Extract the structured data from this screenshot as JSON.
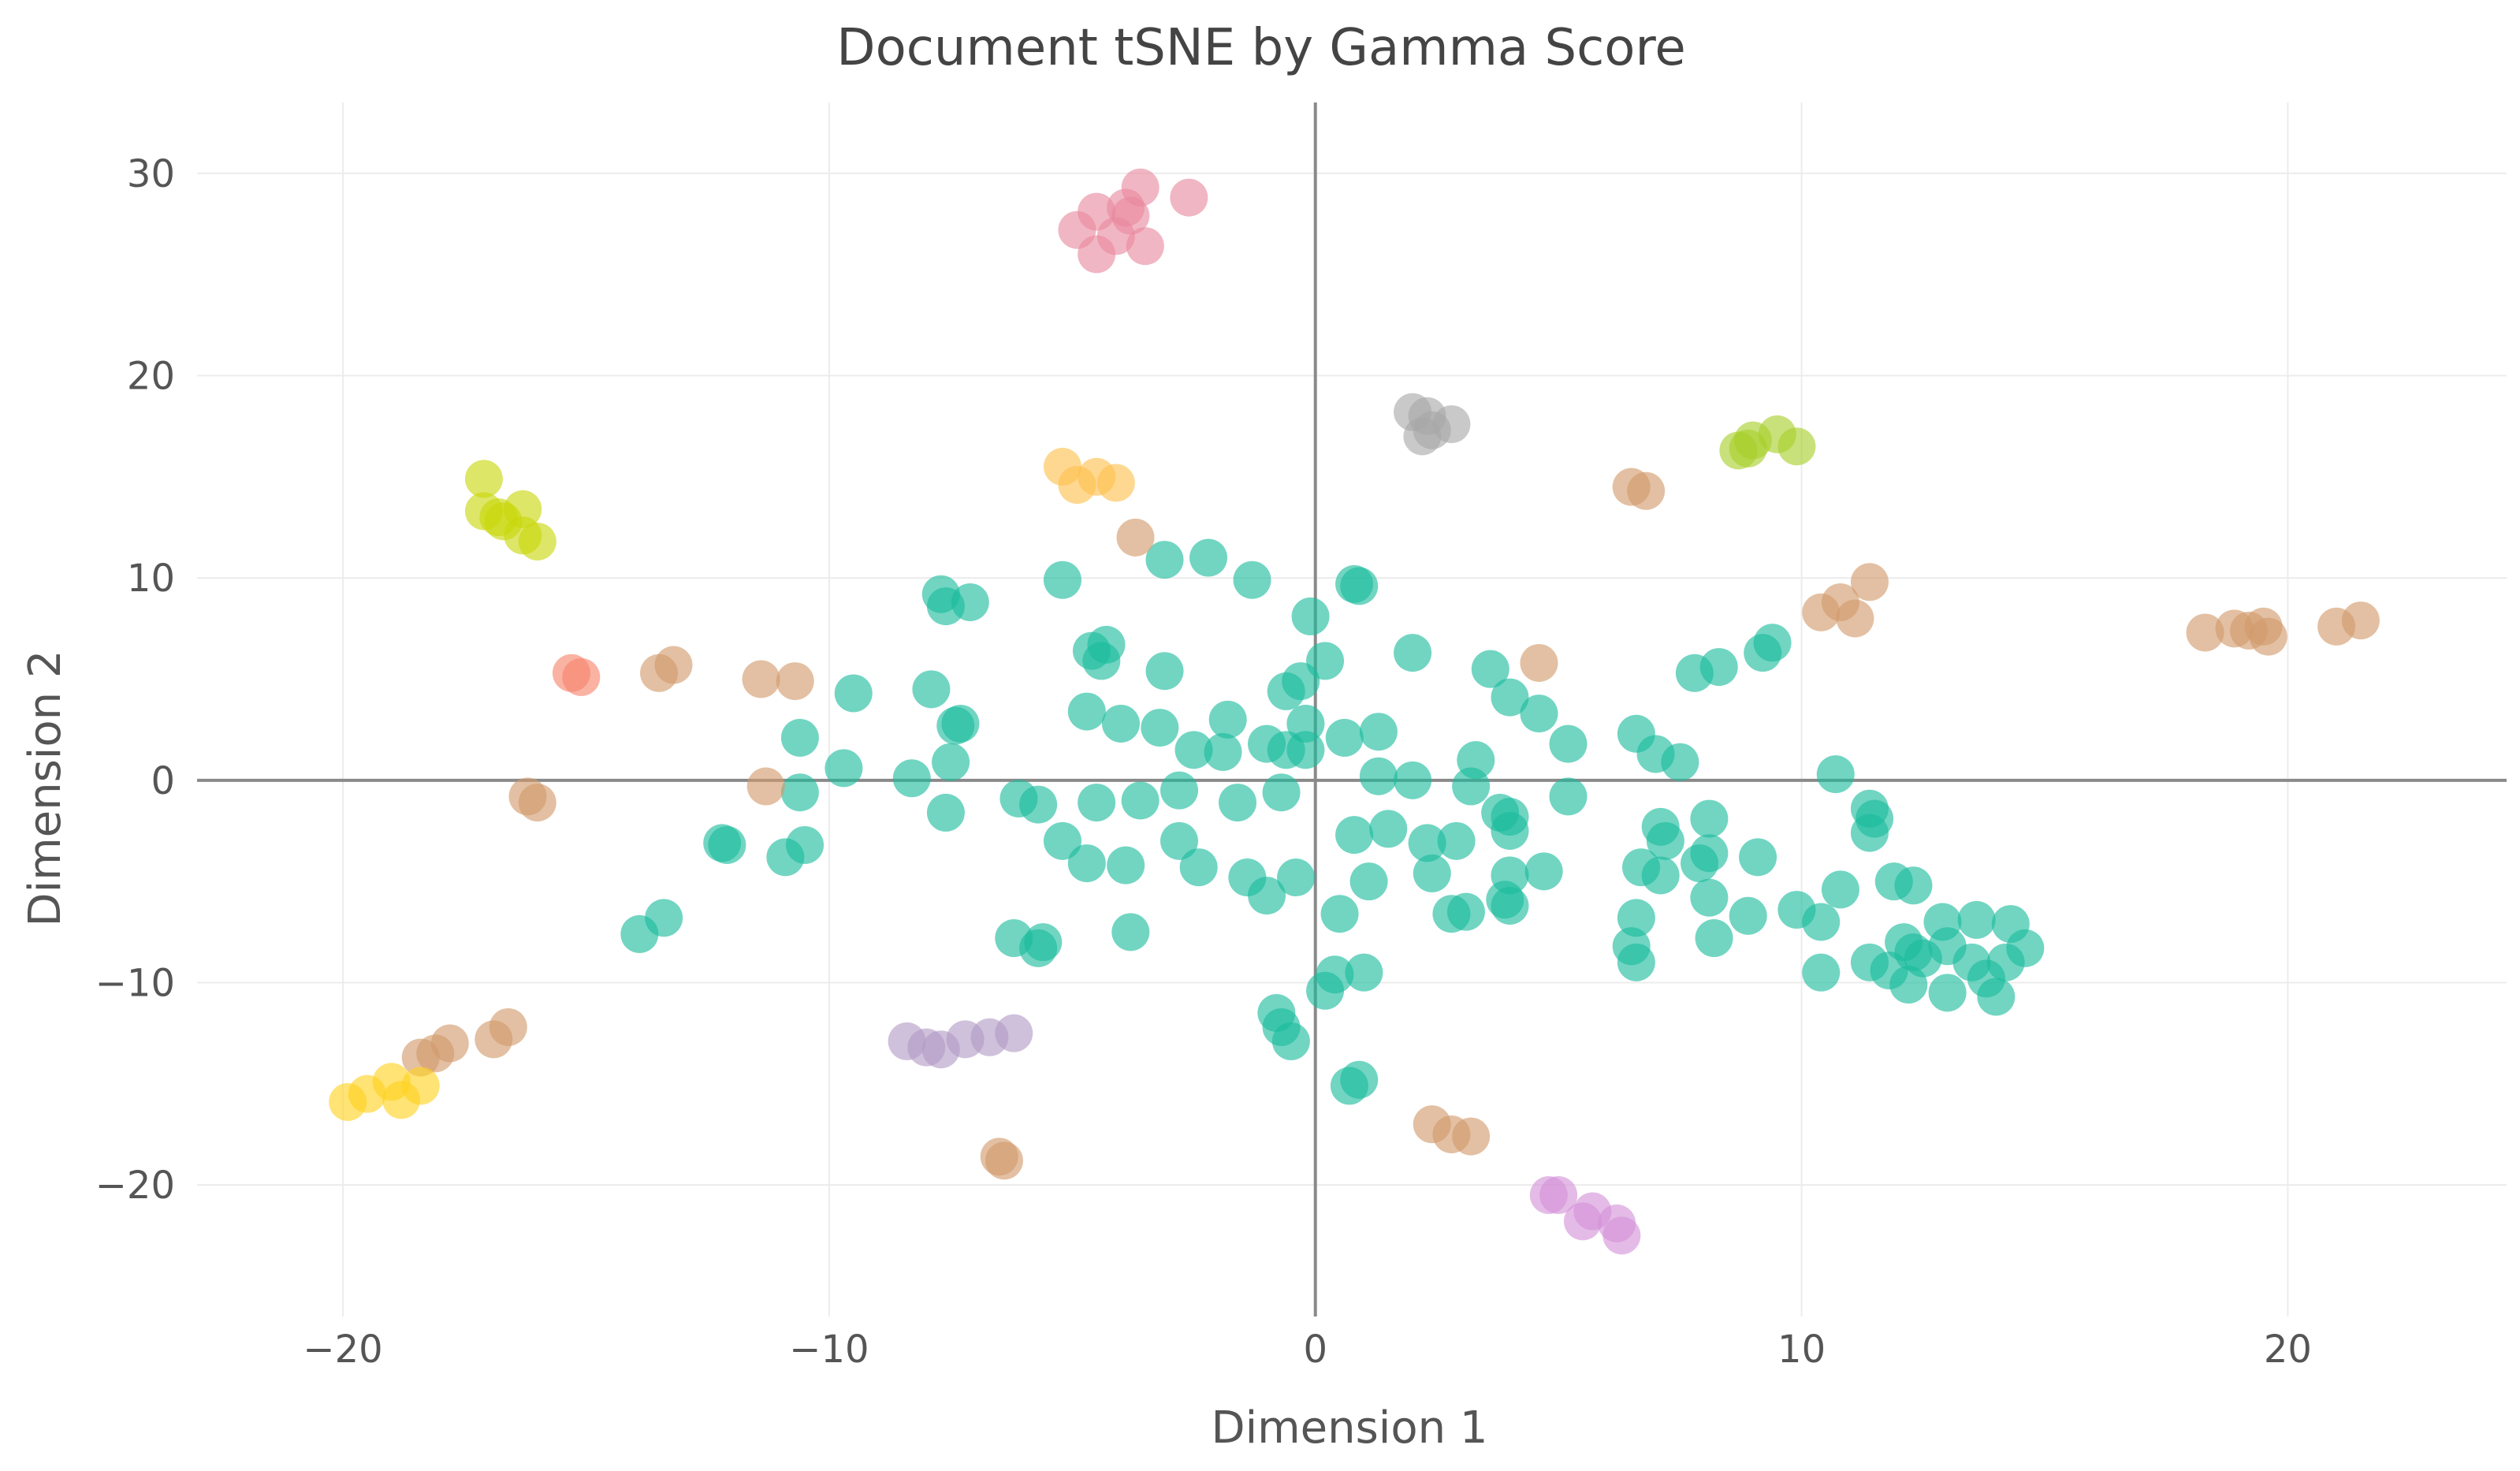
{
  "chart_data": {
    "type": "scatter",
    "title": "Document tSNE by Gamma Score",
    "xlabel": "Dimension 1",
    "ylabel": "Dimension 2",
    "xlim": [
      -23,
      24.5
    ],
    "ylim": [
      -26.5,
      33.5
    ],
    "xticks": [
      -20,
      -10,
      0,
      10,
      20
    ],
    "yticks": [
      -20,
      -10,
      0,
      10,
      20,
      30
    ],
    "tick_labels_x": [
      "−20",
      "−10",
      "0",
      "10",
      "20"
    ],
    "tick_labels_y": [
      "−20",
      "−10",
      "0",
      "10",
      "20",
      "30"
    ],
    "grid": true,
    "zero_lines": true,
    "legend": "none",
    "series": [
      {
        "color": "#1abc9c",
        "points": [
          [
            -7.7,
            9.2
          ],
          [
            -7.6,
            8.6
          ],
          [
            -7.1,
            8.8
          ],
          [
            -5.2,
            9.9
          ],
          [
            -3.1,
            10.9
          ],
          [
            -2.2,
            11.0
          ],
          [
            -1.3,
            9.9
          ],
          [
            0.8,
            9.7
          ],
          [
            0.9,
            9.6
          ],
          [
            -0.1,
            8.1
          ],
          [
            2.0,
            6.3
          ],
          [
            3.6,
            5.5
          ],
          [
            -4.6,
            6.4
          ],
          [
            -4.3,
            6.7
          ],
          [
            -4.4,
            5.9
          ],
          [
            -3.1,
            5.4
          ],
          [
            0.2,
            5.9
          ],
          [
            -0.6,
            4.4
          ],
          [
            -0.3,
            4.9
          ],
          [
            4.0,
            4.1
          ],
          [
            4.6,
            3.3
          ],
          [
            -9.5,
            4.3
          ],
          [
            -7.9,
            4.5
          ],
          [
            -7.3,
            2.8
          ],
          [
            -7.4,
            2.7
          ],
          [
            -4.7,
            3.4
          ],
          [
            -4.0,
            2.8
          ],
          [
            -3.2,
            2.6
          ],
          [
            -1.8,
            3.0
          ],
          [
            -0.2,
            2.8
          ],
          [
            1.3,
            2.4
          ],
          [
            -10.6,
            2.1
          ],
          [
            -9.7,
            0.6
          ],
          [
            -8.3,
            0.1
          ],
          [
            -7.5,
            0.9
          ],
          [
            -2.5,
            1.5
          ],
          [
            -1.9,
            1.4
          ],
          [
            -1.0,
            1.8
          ],
          [
            -0.6,
            1.5
          ],
          [
            -0.2,
            1.5
          ],
          [
            0.6,
            2.1
          ],
          [
            3.3,
            1.0
          ],
          [
            5.2,
            1.8
          ],
          [
            6.6,
            2.3
          ],
          [
            7.0,
            1.3
          ],
          [
            7.5,
            0.9
          ],
          [
            -10.6,
            -0.6
          ],
          [
            -7.6,
            -1.6
          ],
          [
            -6.1,
            -0.9
          ],
          [
            -5.7,
            -1.2
          ],
          [
            -4.5,
            -1.1
          ],
          [
            -3.6,
            -1.0
          ],
          [
            -2.8,
            -0.5
          ],
          [
            -1.6,
            -1.1
          ],
          [
            -0.7,
            -0.6
          ],
          [
            1.3,
            0.2
          ],
          [
            2.0,
            0.0
          ],
          [
            3.2,
            -0.3
          ],
          [
            3.8,
            -1.6
          ],
          [
            4.0,
            -1.8
          ],
          [
            5.2,
            -0.8
          ],
          [
            -12.2,
            -3.1
          ],
          [
            -12.1,
            -3.2
          ],
          [
            -10.9,
            -3.8
          ],
          [
            -10.5,
            -3.2
          ],
          [
            -5.2,
            -3.0
          ],
          [
            -4.7,
            -4.1
          ],
          [
            -3.9,
            -4.2
          ],
          [
            -2.8,
            -3.0
          ],
          [
            -2.4,
            -4.3
          ],
          [
            -1.4,
            -4.8
          ],
          [
            -1.0,
            -5.7
          ],
          [
            -0.4,
            -4.8
          ],
          [
            0.8,
            -2.7
          ],
          [
            1.5,
            -2.4
          ],
          [
            2.3,
            -3.1
          ],
          [
            2.9,
            -3.0
          ],
          [
            2.4,
            -4.6
          ],
          [
            4.0,
            -2.5
          ],
          [
            4.0,
            -4.7
          ],
          [
            4.7,
            -4.5
          ],
          [
            3.9,
            -5.9
          ],
          [
            4.0,
            -6.2
          ],
          [
            1.1,
            -5.0
          ],
          [
            2.8,
            -6.6
          ],
          [
            3.1,
            -6.5
          ],
          [
            0.5,
            -6.6
          ],
          [
            -13.9,
            -7.6
          ],
          [
            -13.4,
            -6.8
          ],
          [
            -6.2,
            -7.8
          ],
          [
            -5.7,
            -8.3
          ],
          [
            -5.6,
            -8.0
          ],
          [
            -3.8,
            -7.5
          ],
          [
            -0.8,
            -11.5
          ],
          [
            -0.7,
            -12.2
          ],
          [
            -0.5,
            -12.9
          ],
          [
            0.2,
            -10.4
          ],
          [
            0.4,
            -9.6
          ],
          [
            1.0,
            -9.5
          ],
          [
            0.7,
            -15.1
          ],
          [
            0.9,
            -14.8
          ],
          [
            7.1,
            -2.3
          ],
          [
            7.2,
            -3.0
          ],
          [
            6.7,
            -4.3
          ],
          [
            7.1,
            -4.7
          ],
          [
            8.1,
            -1.9
          ],
          [
            8.1,
            -3.6
          ],
          [
            8.1,
            -5.8
          ],
          [
            7.9,
            -4.1
          ],
          [
            8.9,
            -6.7
          ],
          [
            9.1,
            -3.8
          ],
          [
            6.6,
            -6.8
          ],
          [
            6.5,
            -8.2
          ],
          [
            6.6,
            -9.0
          ],
          [
            8.2,
            -7.8
          ],
          [
            9.9,
            -6.4
          ],
          [
            10.4,
            -7.0
          ],
          [
            10.8,
            -5.4
          ],
          [
            10.4,
            -9.5
          ],
          [
            10.7,
            0.3
          ],
          [
            11.4,
            -1.4
          ],
          [
            11.5,
            -1.9
          ],
          [
            11.4,
            -2.6
          ],
          [
            11.9,
            -5.0
          ],
          [
            12.3,
            -5.2
          ],
          [
            11.4,
            -9.0
          ],
          [
            11.8,
            -9.4
          ],
          [
            12.1,
            -8.0
          ],
          [
            12.3,
            -8.5
          ],
          [
            12.5,
            -8.8
          ],
          [
            12.9,
            -7.0
          ],
          [
            13.6,
            -6.9
          ],
          [
            13.0,
            -8.2
          ],
          [
            13.5,
            -9.0
          ],
          [
            12.2,
            -10.1
          ],
          [
            13.0,
            -10.5
          ],
          [
            13.8,
            -9.8
          ],
          [
            14.3,
            -7.1
          ],
          [
            14.2,
            -9.0
          ],
          [
            14.6,
            -8.3
          ],
          [
            14.0,
            -10.7
          ],
          [
            7.8,
            5.3
          ],
          [
            8.3,
            5.6
          ],
          [
            9.2,
            6.3
          ],
          [
            9.4,
            6.8
          ]
        ]
      },
      {
        "color": "#e8899e",
        "points": [
          [
            -4.5,
            28.1
          ],
          [
            -3.9,
            28.3
          ],
          [
            -3.6,
            29.3
          ],
          [
            -2.6,
            28.8
          ],
          [
            -4.9,
            27.2
          ],
          [
            -4.5,
            26.0
          ],
          [
            -4.1,
            26.9
          ],
          [
            -3.5,
            26.4
          ],
          [
            -3.8,
            27.9
          ]
        ]
      },
      {
        "color": "#a8a8a8",
        "points": [
          [
            2.0,
            18.2
          ],
          [
            2.3,
            18.0
          ],
          [
            2.8,
            17.6
          ],
          [
            2.4,
            17.3
          ],
          [
            2.2,
            17.0
          ]
        ]
      },
      {
        "color": "#a8cf2a",
        "points": [
          [
            9.0,
            16.8
          ],
          [
            9.5,
            17.1
          ],
          [
            9.9,
            16.5
          ],
          [
            8.9,
            16.4
          ],
          [
            8.7,
            16.3
          ]
        ]
      },
      {
        "color": "#fdc04d",
        "points": [
          [
            -5.2,
            15.5
          ],
          [
            -4.5,
            15.0
          ],
          [
            -4.1,
            14.7
          ],
          [
            -4.9,
            14.6
          ]
        ]
      },
      {
        "color": "#c8d60a",
        "points": [
          [
            -17.1,
            14.9
          ],
          [
            -17.1,
            13.3
          ],
          [
            -16.8,
            13.0
          ],
          [
            -16.7,
            12.8
          ],
          [
            -16.3,
            13.4
          ],
          [
            -16.3,
            12.1
          ],
          [
            -16.0,
            11.8
          ]
        ]
      },
      {
        "color": "#d2996a",
        "points": [
          [
            6.5,
            14.5
          ],
          [
            6.8,
            14.3
          ],
          [
            -3.7,
            12.0
          ],
          [
            10.4,
            8.3
          ],
          [
            10.8,
            8.8
          ],
          [
            11.1,
            8.0
          ],
          [
            11.4,
            9.8
          ],
          [
            4.6,
            5.8
          ],
          [
            18.3,
            7.3
          ],
          [
            18.9,
            7.5
          ],
          [
            19.2,
            7.4
          ],
          [
            19.5,
            7.6
          ],
          [
            19.6,
            7.1
          ],
          [
            21.0,
            7.6
          ],
          [
            21.5,
            7.9
          ],
          [
            -13.5,
            5.3
          ],
          [
            -13.2,
            5.7
          ],
          [
            -11.4,
            5.0
          ],
          [
            -10.7,
            4.9
          ],
          [
            -11.3,
            -0.3
          ],
          [
            -16.2,
            -0.8
          ],
          [
            -16.0,
            -1.1
          ],
          [
            -16.6,
            -12.2
          ],
          [
            -16.9,
            -12.8
          ],
          [
            -17.8,
            -13.0
          ],
          [
            -18.1,
            -13.5
          ],
          [
            -18.4,
            -13.7
          ],
          [
            -6.5,
            -18.6
          ],
          [
            -6.4,
            -18.8
          ],
          [
            2.4,
            -17.0
          ],
          [
            2.8,
            -17.5
          ],
          [
            3.2,
            -17.6
          ]
        ]
      },
      {
        "color": "#f7826a",
        "points": [
          [
            -15.3,
            5.3
          ],
          [
            -15.1,
            5.1
          ]
        ]
      },
      {
        "color": "#ffd21f",
        "points": [
          [
            -19.9,
            -15.9
          ],
          [
            -19.5,
            -15.5
          ],
          [
            -19.0,
            -14.9
          ],
          [
            -18.8,
            -15.8
          ],
          [
            -18.4,
            -15.1
          ]
        ]
      },
      {
        "color": "#b29bc5",
        "points": [
          [
            -8.4,
            -12.9
          ],
          [
            -8.0,
            -13.2
          ],
          [
            -7.7,
            -13.3
          ],
          [
            -7.2,
            -12.8
          ],
          [
            -6.7,
            -12.7
          ],
          [
            -6.2,
            -12.5
          ]
        ]
      },
      {
        "color": "#d391d8",
        "points": [
          [
            4.8,
            -20.5
          ],
          [
            5.0,
            -20.5
          ],
          [
            5.5,
            -21.8
          ],
          [
            5.7,
            -21.3
          ],
          [
            6.2,
            -21.9
          ],
          [
            6.3,
            -22.5
          ]
        ]
      }
    ]
  }
}
